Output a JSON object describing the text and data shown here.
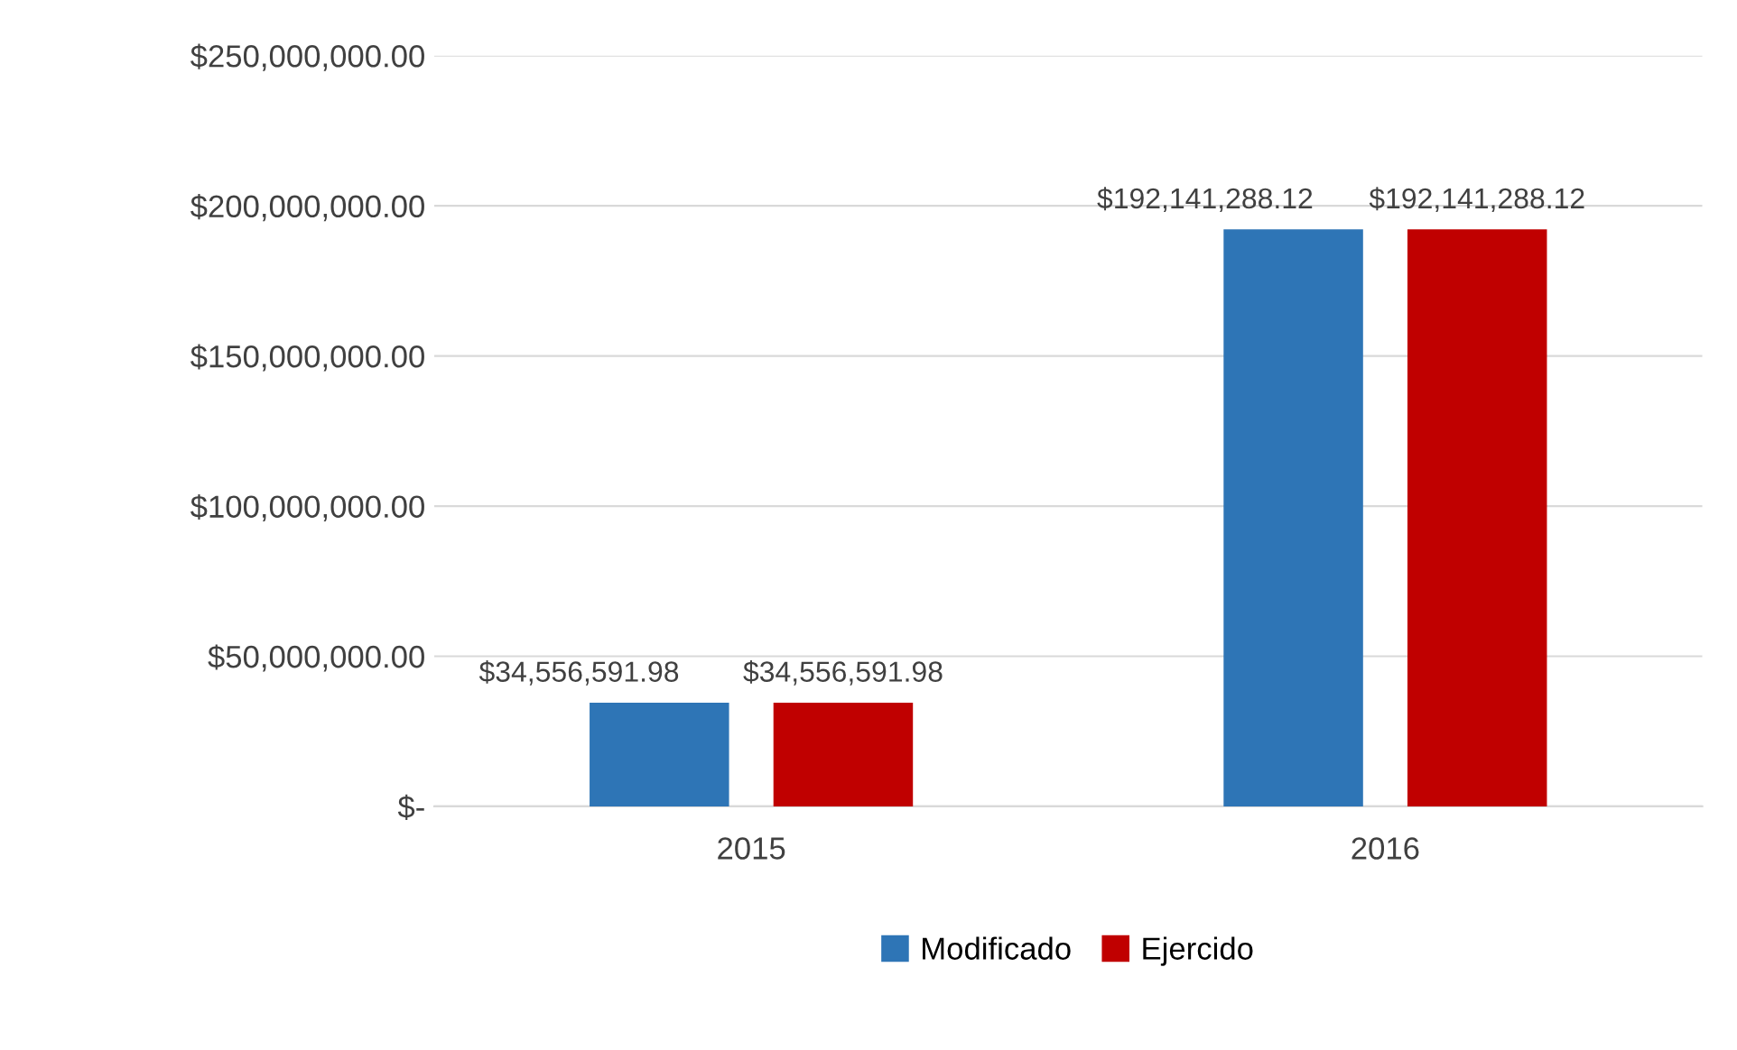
{
  "chart_data": {
    "type": "bar",
    "categories": [
      "2015",
      "2016"
    ],
    "series": [
      {
        "name": "Modificado",
        "color": "#2e75b6",
        "values": [
          34556591.98,
          192141288.12
        ],
        "value_labels": [
          "$34,556,591.98",
          "$192,141,288.12"
        ]
      },
      {
        "name": "Ejercido",
        "color": "#c00000",
        "values": [
          34556591.98,
          192141288.12
        ],
        "value_labels": [
          "$34,556,591.98",
          "$192,141,288.12"
        ]
      }
    ],
    "ylim": [
      0,
      250000000
    ],
    "yticks": [
      {
        "value": 0,
        "label": "$-"
      },
      {
        "value": 50000000,
        "label": "$50,000,000.00"
      },
      {
        "value": 100000000,
        "label": "$100,000,000.00"
      },
      {
        "value": 150000000,
        "label": "$150,000,000.00"
      },
      {
        "value": 200000000,
        "label": "$200,000,000.00"
      },
      {
        "value": 250000000,
        "label": "$250,000,000.00"
      }
    ],
    "grid": "y",
    "legend": "bottom"
  }
}
